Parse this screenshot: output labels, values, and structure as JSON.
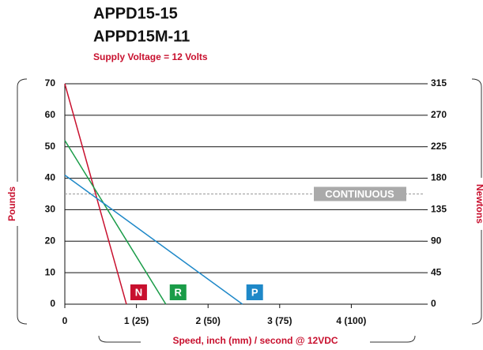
{
  "chart_data": {
    "type": "line",
    "title": "APPD15-15",
    "subtitle": "APPD15M-11",
    "note": "Supply Voltage = 12 Volts",
    "y_label": "Pounds",
    "y2_label": "Newtons",
    "x_label": "Speed, inch (mm) / second @ 12VDC",
    "xlim": [
      0,
      5
    ],
    "xticks": [
      0,
      {
        "value": 1,
        "label": "1 (25)"
      },
      {
        "value": 2,
        "label": "2 (50)"
      },
      {
        "value": 3,
        "label": "3 (75)"
      },
      {
        "value": 4,
        "label": "4 (100)"
      }
    ],
    "ylim": [
      0,
      70
    ],
    "yticks": [
      0,
      10,
      20,
      30,
      40,
      50,
      60,
      70
    ],
    "y2lim": [
      0,
      315
    ],
    "y2ticks": [
      0,
      45,
      90,
      135,
      180,
      225,
      270,
      315
    ],
    "grid": true,
    "reference_line": {
      "value": 35,
      "label": "CONTINUOUS"
    },
    "series": [
      {
        "name": "N",
        "color": "#c8102e",
        "x": [
          0,
          0.86
        ],
        "values": [
          70,
          0
        ]
      },
      {
        "name": "R",
        "color": "#1a9c48",
        "x": [
          0,
          1.41
        ],
        "values": [
          52,
          0
        ]
      },
      {
        "name": "P",
        "color": "#1e88c8",
        "x": [
          0,
          2.48
        ],
        "values": [
          41,
          0
        ]
      }
    ]
  }
}
